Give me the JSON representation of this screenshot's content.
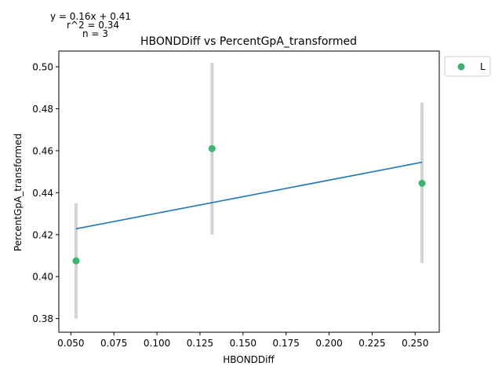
{
  "chart_data": {
    "type": "scatter",
    "title": "HBONDDiff vs PercentGpA_transformed",
    "xlabel": "HBONDDiff",
    "ylabel": "PercentGpA_transformed",
    "xlim": [
      0.043,
      0.264
    ],
    "ylim": [
      0.3735,
      0.5075
    ],
    "xticks": [
      0.05,
      0.075,
      0.1,
      0.125,
      0.15,
      0.175,
      0.2,
      0.225,
      0.25
    ],
    "xtick_labels": [
      "0.050",
      "0.075",
      "0.100",
      "0.125",
      "0.150",
      "0.175",
      "0.200",
      "0.225",
      "0.250"
    ],
    "yticks": [
      0.38,
      0.4,
      0.42,
      0.44,
      0.46,
      0.48,
      0.5
    ],
    "ytick_labels": [
      "0.38",
      "0.40",
      "0.42",
      "0.44",
      "0.46",
      "0.48",
      "0.50"
    ],
    "grid": false,
    "legend_position": "outside-top-right",
    "series": [
      {
        "name": "L",
        "color": "#3cb371",
        "points": [
          {
            "x": 0.053,
            "y": 0.4075,
            "err_low": 0.38,
            "err_high": 0.435
          },
          {
            "x": 0.132,
            "y": 0.461,
            "err_low": 0.42,
            "err_high": 0.502
          },
          {
            "x": 0.254,
            "y": 0.4445,
            "err_low": 0.4065,
            "err_high": 0.483
          }
        ]
      }
    ],
    "errorbar_color": "#d3d3d3",
    "fit_line": {
      "color": "#1f77b4",
      "x": [
        0.053,
        0.254
      ],
      "y": [
        0.4228,
        0.4545
      ]
    },
    "annotations": [
      "y = 0.16x + 0.41",
      "r^2 = 0.34",
      "n = 3"
    ]
  }
}
